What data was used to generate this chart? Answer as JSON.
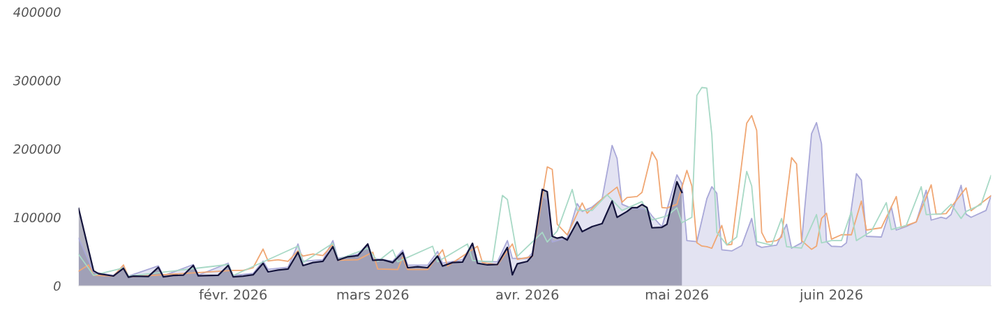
{
  "chart_data": {
    "type": "area",
    "xlim": [
      "2026-01-01",
      "2026-07-03"
    ],
    "xticks": [
      {
        "value": "2026-02-01",
        "label": "févr. 2026"
      },
      {
        "value": "2026-03-01",
        "label": "mars 2026"
      },
      {
        "value": "2026-04-01",
        "label": "avr. 2026"
      },
      {
        "value": "2026-05-01",
        "label": "mai 2026"
      },
      {
        "value": "2026-06-01",
        "label": "juin 2026"
      }
    ],
    "ylim": [
      0,
      400000
    ],
    "yticks": [
      0,
      100000,
      200000,
      300000,
      400000
    ],
    "grid": false,
    "legend": false,
    "series": [
      {
        "color": "#a9a8d8",
        "x": [
          "2026-01-01",
          "2026-01-04",
          "2026-01-08",
          "2026-01-10",
          "2026-01-11",
          "2026-01-17",
          "2026-01-18",
          "2026-01-24",
          "2026-01-25",
          "2026-01-31",
          "2026-02-01",
          "2026-02-05",
          "2026-02-07",
          "2026-02-08",
          "2026-02-12",
          "2026-02-14",
          "2026-02-15",
          "2026-02-19",
          "2026-02-21",
          "2026-02-22",
          "2026-02-26",
          "2026-02-28",
          "2026-03-01",
          "2026-03-05",
          "2026-03-07",
          "2026-03-08",
          "2026-03-12",
          "2026-03-14",
          "2026-03-15",
          "2026-03-19",
          "2026-03-21",
          "2026-03-22",
          "2026-03-26",
          "2026-03-28",
          "2026-03-29",
          "2026-04-01",
          "2026-04-02",
          "2026-04-04",
          "2026-04-05",
          "2026-04-06",
          "2026-04-09",
          "2026-04-11",
          "2026-04-12",
          "2026-04-14",
          "2026-04-16",
          "2026-04-18",
          "2026-04-19",
          "2026-04-20",
          "2026-04-22",
          "2026-04-25",
          "2026-04-26",
          "2026-04-28",
          "2026-05-01",
          "2026-05-02",
          "2026-05-03",
          "2026-05-05",
          "2026-05-07",
          "2026-05-08",
          "2026-05-09",
          "2026-05-10",
          "2026-05-12",
          "2026-05-14",
          "2026-05-16",
          "2026-05-17",
          "2026-05-18",
          "2026-05-21",
          "2026-05-23",
          "2026-05-24",
          "2026-05-26",
          "2026-05-28",
          "2026-05-29",
          "2026-05-30",
          "2026-05-31",
          "2026-06-01",
          "2026-06-03",
          "2026-06-04",
          "2026-06-06",
          "2026-06-07",
          "2026-06-08",
          "2026-06-11",
          "2026-06-13",
          "2026-06-14",
          "2026-06-16",
          "2026-06-18",
          "2026-06-20",
          "2026-06-21",
          "2026-06-23",
          "2026-06-24",
          "2026-06-25",
          "2026-06-27",
          "2026-06-28",
          "2026-06-29",
          "2026-07-02",
          "2026-07-03"
        ],
        "values": [
          69500,
          20000,
          15000,
          28000,
          14000,
          29000,
          14500,
          31000,
          15500,
          33000,
          15000,
          18000,
          36000,
          24000,
          27000,
          61000,
          36000,
          38000,
          66000,
          40000,
          46000,
          61000,
          40000,
          36000,
          52000,
          30000,
          30000,
          50000,
          33000,
          38000,
          62000,
          36000,
          35000,
          66000,
          40000,
          40000,
          48000,
          130000,
          125000,
          64000,
          70000,
          120000,
          108500,
          115000,
          127000,
          205000,
          186000,
          119000,
          113000,
          112000,
          102000,
          86000,
          162000,
          149500,
          66000,
          64400,
          127000,
          144700,
          135000,
          52600,
          50900,
          58700,
          98300,
          59300,
          56000,
          59300,
          89800,
          54900,
          62700,
          222000,
          238300,
          207500,
          64400,
          57700,
          57000,
          62700,
          163700,
          154300,
          72200,
          71200,
          115200,
          81400,
          86500,
          93300,
          139600,
          95900,
          100000,
          98000,
          104000,
          146800,
          104400,
          100000,
          110000,
          131500
        ]
      },
      {
        "type": "line",
        "color": "#f0a774",
        "x": [
          "2026-01-01",
          "2026-01-03",
          "2026-01-04",
          "2026-01-08",
          "2026-01-10",
          "2026-01-11",
          "2026-02-01",
          "2026-02-03",
          "2026-02-05",
          "2026-02-07",
          "2026-02-08",
          "2026-02-10",
          "2026-02-12",
          "2026-02-14",
          "2026-02-15",
          "2026-02-17",
          "2026-02-19",
          "2026-02-21",
          "2026-02-22",
          "2026-02-26",
          "2026-03-01",
          "2026-03-02",
          "2026-03-06",
          "2026-03-07",
          "2026-03-08",
          "2026-03-12",
          "2026-03-15",
          "2026-03-16",
          "2026-03-22",
          "2026-03-23",
          "2026-03-26",
          "2026-03-29",
          "2026-03-30",
          "2026-04-02",
          "2026-04-05",
          "2026-04-06",
          "2026-04-07",
          "2026-04-09",
          "2026-04-12",
          "2026-04-13",
          "2026-04-16",
          "2026-04-19",
          "2026-04-20",
          "2026-04-21",
          "2026-04-23",
          "2026-04-24",
          "2026-04-26",
          "2026-04-27",
          "2026-04-28",
          "2026-04-29",
          "2026-05-01",
          "2026-05-03",
          "2026-05-04",
          "2026-05-05",
          "2026-05-06",
          "2026-05-07",
          "2026-05-08",
          "2026-05-10",
          "2026-05-11",
          "2026-05-12",
          "2026-05-15",
          "2026-05-16",
          "2026-05-17",
          "2026-05-18",
          "2026-05-19",
          "2026-05-21",
          "2026-05-22",
          "2026-05-24",
          "2026-05-25",
          "2026-05-26",
          "2026-05-28",
          "2026-05-29",
          "2026-05-30",
          "2026-05-31",
          "2026-06-01",
          "2026-06-03",
          "2026-06-05",
          "2026-06-07",
          "2026-06-08",
          "2026-06-11",
          "2026-06-14",
          "2026-06-15",
          "2026-06-18",
          "2026-06-21",
          "2026-06-22",
          "2026-06-24",
          "2026-06-28",
          "2026-06-29",
          "2026-07-02",
          "2026-07-03"
        ],
        "values": [
          21400,
          30500,
          15300,
          14000,
          30500,
          13000,
          22400,
          22400,
          26400,
          53600,
          36300,
          38000,
          35600,
          50900,
          43400,
          46500,
          44000,
          60400,
          37300,
          38000,
          49000,
          24400,
          23700,
          41400,
          23700,
          23700,
          52600,
          28800,
          57700,
          33900,
          30500,
          61000,
          38600,
          42700,
          173600,
          170000,
          89800,
          74500,
          121000,
          106000,
          127000,
          144100,
          122000,
          128800,
          130400,
          136300,
          195600,
          183000,
          114200,
          113500,
          119000,
          168500,
          145700,
          62700,
          58000,
          57000,
          54900,
          88100,
          59700,
          60500,
          237500,
          248500,
          227000,
          78000,
          63700,
          66000,
          71200,
          187100,
          178000,
          66000,
          53200,
          58000,
          98300,
          106000,
          68000,
          74500,
          74500,
          123800,
          81400,
          84700,
          130400,
          85400,
          93300,
          147500,
          104400,
          105400,
          143000,
          109500,
          126000,
          131500
        ]
      },
      {
        "type": "line",
        "color": "#a8d9c6",
        "x": [
          "2026-01-01",
          "2026-01-04",
          "2026-01-10",
          "2026-01-11",
          "2026-01-31",
          "2026-02-01",
          "2026-02-14",
          "2026-02-15",
          "2026-02-21",
          "2026-02-22",
          "2026-02-28",
          "2026-03-02",
          "2026-03-05",
          "2026-03-06",
          "2026-03-13",
          "2026-03-14",
          "2026-03-20",
          "2026-03-21",
          "2026-03-25",
          "2026-03-27",
          "2026-03-28",
          "2026-03-30",
          "2026-04-04",
          "2026-04-05",
          "2026-04-07",
          "2026-04-10",
          "2026-04-11",
          "2026-04-14",
          "2026-04-17",
          "2026-04-20",
          "2026-04-24",
          "2026-04-26",
          "2026-04-29",
          "2026-05-01",
          "2026-05-02",
          "2026-05-04",
          "2026-05-05",
          "2026-05-06",
          "2026-05-07",
          "2026-05-08",
          "2026-05-09",
          "2026-05-11",
          "2026-05-13",
          "2026-05-15",
          "2026-05-16",
          "2026-05-17",
          "2026-05-20",
          "2026-05-22",
          "2026-05-23",
          "2026-05-26",
          "2026-05-29",
          "2026-05-30",
          "2026-06-01",
          "2026-06-03",
          "2026-06-05",
          "2026-06-06",
          "2026-06-09",
          "2026-06-12",
          "2026-06-13",
          "2026-06-16",
          "2026-06-19",
          "2026-06-20",
          "2026-06-23",
          "2026-06-25",
          "2026-06-27",
          "2026-06-28",
          "2026-07-01",
          "2026-07-03"
        ],
        "values": [
          45800,
          15300,
          26000,
          14000,
          31000,
          15000,
          58000,
          34000,
          62000,
          38000,
          55000,
          35600,
          52600,
          35000,
          57700,
          35000,
          61000,
          37000,
          35000,
          132000,
          126000,
          43000,
          78000,
          64000,
          80000,
          140700,
          110000,
          110000,
          133000,
          110000,
          123000,
          96000,
          102000,
          114000,
          92000,
          100000,
          278000,
          289600,
          288600,
          221000,
          78000,
          59700,
          71200,
          167000,
          145700,
          64400,
          59300,
          98300,
          57000,
          55000,
          104000,
          62700,
          66000,
          66000,
          108500,
          66000,
          79700,
          121500,
          82000,
          88100,
          144700,
          104000,
          105000,
          119000,
          98300,
          108500,
          118700,
          161000
        ]
      },
      {
        "color": "#14143c",
        "x": [
          "2026-01-01",
          "2026-01-04",
          "2026-01-05",
          "2026-01-08",
          "2026-01-10",
          "2026-01-11",
          "2026-01-12",
          "2026-01-15",
          "2026-01-17",
          "2026-01-18",
          "2026-01-20",
          "2026-01-22",
          "2026-01-24",
          "2026-01-25",
          "2026-01-29",
          "2026-01-31",
          "2026-02-01",
          "2026-02-03",
          "2026-02-05",
          "2026-02-07",
          "2026-02-08",
          "2026-02-10",
          "2026-02-12",
          "2026-02-14",
          "2026-02-15",
          "2026-02-17",
          "2026-02-19",
          "2026-02-21",
          "2026-02-22",
          "2026-02-24",
          "2026-02-26",
          "2026-02-28",
          "2026-03-01",
          "2026-03-03",
          "2026-03-05",
          "2026-03-07",
          "2026-03-08",
          "2026-03-10",
          "2026-03-12",
          "2026-03-14",
          "2026-03-15",
          "2026-03-17",
          "2026-03-19",
          "2026-03-21",
          "2026-03-22",
          "2026-03-24",
          "2026-03-26",
          "2026-03-28",
          "2026-03-29",
          "2026-03-30",
          "2026-04-01",
          "2026-04-02",
          "2026-04-04",
          "2026-04-05",
          "2026-04-06",
          "2026-04-07",
          "2026-04-08",
          "2026-04-09",
          "2026-04-11",
          "2026-04-12",
          "2026-04-14",
          "2026-04-16",
          "2026-04-18",
          "2026-04-19",
          "2026-04-21",
          "2026-04-22",
          "2026-04-23",
          "2026-04-24",
          "2026-04-25",
          "2026-04-26",
          "2026-04-28",
          "2026-04-29",
          "2026-05-01",
          "2026-05-02"
        ],
        "values": [
          113000,
          22000,
          17600,
          14200,
          25400,
          12500,
          14000,
          13500,
          27000,
          13000,
          15000,
          15500,
          29800,
          14500,
          15300,
          29800,
          13000,
          14000,
          16000,
          32800,
          20300,
          23000,
          24400,
          49000,
          29500,
          33900,
          35600,
          57000,
          37300,
          42400,
          44000,
          61000,
          37300,
          38000,
          33900,
          48500,
          26400,
          27800,
          26400,
          43400,
          28800,
          33900,
          34600,
          62000,
          32800,
          30500,
          31200,
          56000,
          16000,
          32200,
          35600,
          44000,
          140700,
          137300,
          72200,
          69500,
          71000,
          66800,
          93300,
          79000,
          86500,
          90800,
          123800,
          100000,
          108500,
          114200,
          114000,
          118700,
          114200,
          84700,
          85400,
          89800,
          151900,
          136300
        ]
      }
    ]
  }
}
